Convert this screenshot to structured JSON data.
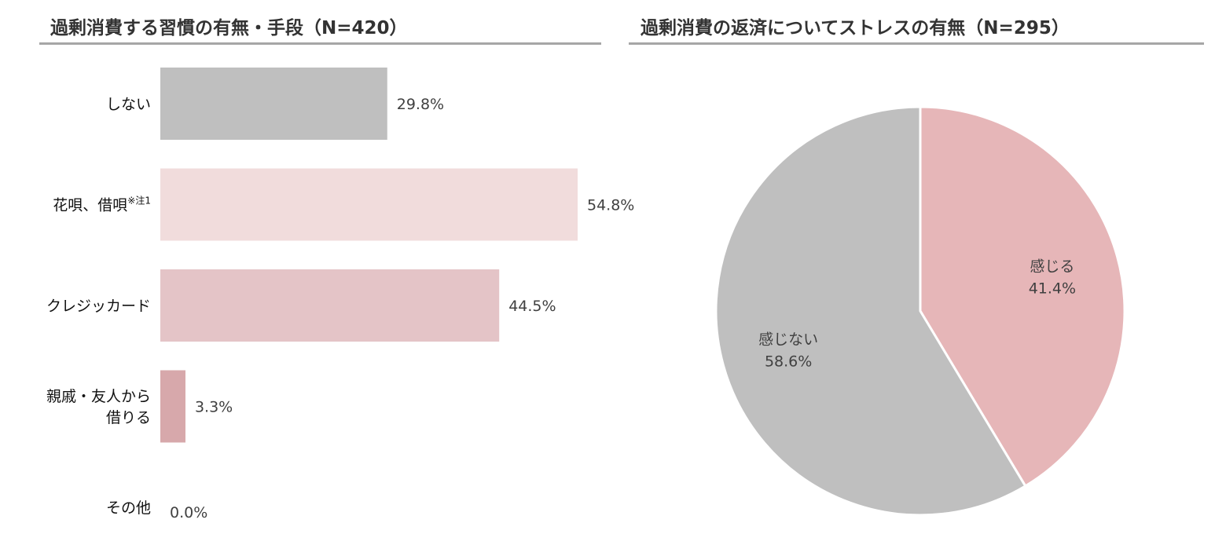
{
  "chart_data": [
    {
      "type": "bar",
      "orientation": "horizontal",
      "title": "過剰消費する習慣の有無・手段（N=420）",
      "categories": [
        [
          "しない"
        ],
        [
          "花唄、借唄",
          "※注1"
        ],
        [
          "クレジッカード"
        ],
        [
          "親戚・友人から",
          "借りる"
        ],
        [
          "その他"
        ]
      ],
      "values": [
        29.8,
        54.8,
        44.5,
        3.3,
        0.0
      ],
      "value_labels": [
        "29.8%",
        "54.8%",
        "44.5%",
        "3.3%",
        "0.0%"
      ],
      "colors": [
        "#bfbfbf",
        "#f1dcdc",
        "#e4c4c7",
        "#d7a8ab",
        "#cccccc"
      ],
      "xlim": [
        0,
        60
      ],
      "grid": false
    },
    {
      "type": "pie",
      "title": "過剰消費の返済についてストレスの有無（N=295）",
      "start": "12 o'clock, clockwise",
      "slices": [
        {
          "label": "感じる",
          "value": 41.4,
          "value_label": "41.4%",
          "color": "#e6b6b8"
        },
        {
          "label": "感じない",
          "value": 58.6,
          "value_label": "58.6%",
          "color": "#bfbfbf"
        }
      ]
    }
  ]
}
